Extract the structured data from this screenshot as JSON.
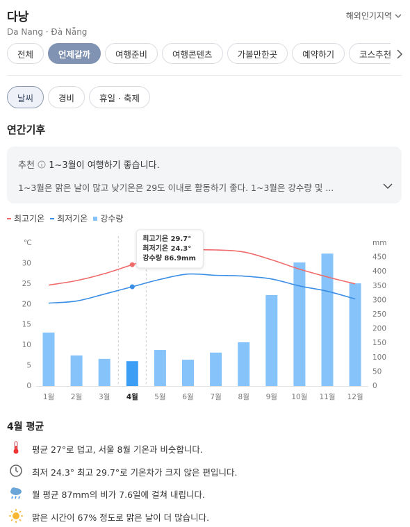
{
  "header": {
    "title": "다낭",
    "subtitle": "Da Nang · Đà Nẵng",
    "link": "해외인기지역"
  },
  "tabs": [
    {
      "label": "전체"
    },
    {
      "label": "언제갈까",
      "active": true
    },
    {
      "label": "여행준비"
    },
    {
      "label": "여행콘텐츠"
    },
    {
      "label": "가볼만한곳"
    },
    {
      "label": "예약하기"
    },
    {
      "label": "코스추천"
    }
  ],
  "subtabs": [
    {
      "label": "날씨",
      "active": true
    },
    {
      "label": "경비"
    },
    {
      "label": "휴일 · 축제"
    }
  ],
  "section_title": "연간기후",
  "recommend": {
    "tag": "추천",
    "headline": "1~3월이 여행하기 좋습니다.",
    "detail": "1~3월은 맑은 날이 많고 낮기온은 29도 이내로 활동하기 좋다. 1~3월은 강수량 및 ..."
  },
  "chart_data": {
    "type": "combo",
    "categories": [
      "1월",
      "2월",
      "3월",
      "4월",
      "5월",
      "6월",
      "7월",
      "8월",
      "9월",
      "10월",
      "11월",
      "12월"
    ],
    "series": [
      {
        "name": "최고기온",
        "type": "line",
        "color": "#f06a6a",
        "values": [
          24.7,
          25.8,
          27.5,
          29.7,
          31.8,
          33.2,
          33.3,
          32.8,
          30.9,
          28.6,
          26.7,
          25.0
        ]
      },
      {
        "name": "최저기온",
        "type": "line",
        "color": "#3a8ee6",
        "values": [
          20.3,
          20.8,
          22.5,
          24.3,
          26.1,
          27.4,
          27.1,
          26.9,
          26.2,
          24.5,
          23.2,
          21.3
        ]
      },
      {
        "name": "강수량",
        "type": "bar",
        "axis": "y2",
        "color": "#86c3fa",
        "colors": [
          "#86c3fa",
          "#86c3fa",
          "#86c3fa",
          "#3d9ef5",
          "#86c3fa",
          "#86c3fa",
          "#86c3fa",
          "#86c3fa",
          "#86c3fa",
          "#86c3fa",
          "#86c3fa",
          "#86c3fa"
        ],
        "values": [
          187,
          107,
          95,
          86.9,
          126,
          92,
          117,
          153,
          318,
          432,
          463,
          359
        ]
      }
    ],
    "ylabel": "℃",
    "y2label": "mm",
    "ylim": [
      0,
      35
    ],
    "yticks": [
      0,
      5,
      10,
      15,
      20,
      25,
      30
    ],
    "y2lim": [
      0,
      500
    ],
    "y2ticks": [
      0,
      50,
      100,
      150,
      200,
      250,
      300,
      350,
      400,
      450
    ],
    "tooltip": [
      "최고기온 29.7°",
      "최저기온 24.3°",
      "강수량 86.9mm"
    ]
  },
  "summary": {
    "title": "4월 평균",
    "items": [
      "평균 27°로 덥고, 서울 8월 기온과 비슷합니다.",
      "최저 24.3° 최고 29.7°로 기온차가 크지 않은 편입니다.",
      "월 평균 87mm의 비가 7.6일에 걸쳐 내립니다.",
      "맑은 시간이 67% 정도로 맑은 날이 더 많습니다."
    ]
  }
}
